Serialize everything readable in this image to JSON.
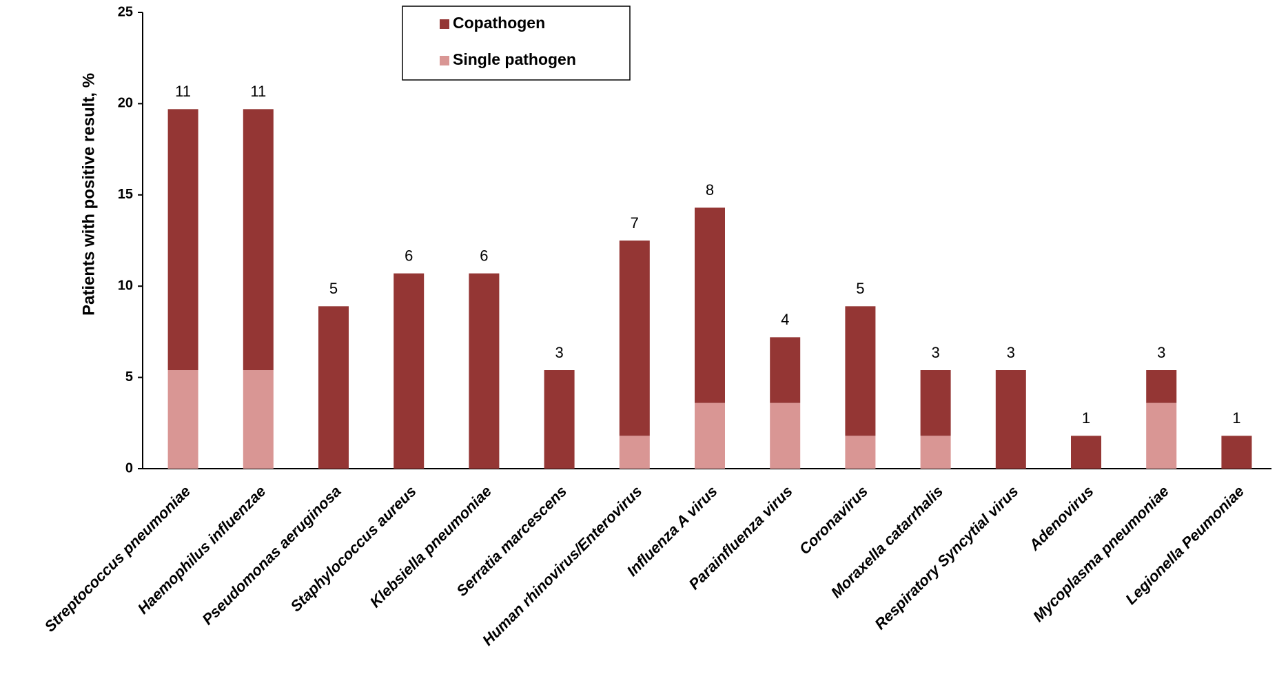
{
  "chart_data": {
    "type": "stacked_bar",
    "y_label": "Patients with positive result, %",
    "categories": [
      "Streptococcus pneumoniae",
      "Haemophilus influenzae",
      "Pseudomonas aeruginosa",
      "Staphylococcus aureus",
      "Klebsiella pneumoniae",
      "Serratia marcescens",
      "Human rhinovirus/Enterovirus",
      "Influenza A virus",
      "Parainfluenza virus",
      "Coronavirus",
      "Moraxella catarrhalis",
      "Respiratory Syncytial virus",
      "Adenovirus",
      "Mycoplasma pneumoniae",
      "Legionella Peumoniae"
    ],
    "series": [
      {
        "name": "Copathogen",
        "color": "#943634",
        "values": [
          14.3,
          14.3,
          8.9,
          10.7,
          10.7,
          5.4,
          10.7,
          10.7,
          3.6,
          7.1,
          3.6,
          5.4,
          1.8,
          1.8,
          1.8
        ]
      },
      {
        "name": "Single pathogen",
        "color": "#d99694",
        "values": [
          5.4,
          5.4,
          0,
          0,
          0,
          0,
          1.8,
          3.6,
          3.6,
          1.8,
          1.8,
          0,
          0,
          3.6,
          0
        ]
      }
    ],
    "patient_counts": [
      11,
      11,
      5,
      6,
      6,
      3,
      7,
      8,
      4,
      5,
      3,
      3,
      1,
      3,
      1
    ],
    "ylim": [
      0,
      25
    ],
    "yticks": [
      0,
      5,
      10,
      15,
      20,
      25
    ],
    "grid": false,
    "legend": "top"
  }
}
